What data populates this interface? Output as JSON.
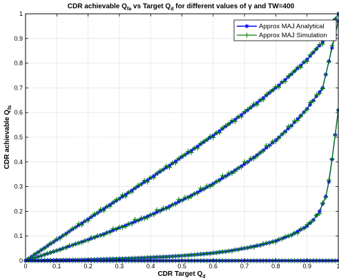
{
  "chart_data": {
    "type": "line",
    "title": {
      "main": "CDR achievable Q",
      "main_sub": "fa",
      "mid": " vs Target Q",
      "mid_sub": "d",
      "tail": " for different values of γ and TW=400"
    },
    "xlabel": {
      "main": "CDR Target Q",
      "sub": "d"
    },
    "ylabel": {
      "main": "CDR achievable Q",
      "sub": "fa"
    },
    "xlim": [
      0,
      1
    ],
    "ylim": [
      0,
      1
    ],
    "xticks": [
      "0",
      "0.1",
      "0.2",
      "0.3",
      "0.4",
      "0.5",
      "0.6",
      "0.7",
      "0.8",
      "0.9",
      "1"
    ],
    "yticks": [
      "0",
      "0.1",
      "0.2",
      "0.3",
      "0.4",
      "0.5",
      "0.6",
      "0.7",
      "0.8",
      "0.9",
      "1"
    ],
    "grid": true,
    "legend_position": "top-right",
    "colors": {
      "analytical": "#0000ff",
      "simulation": "#008000"
    },
    "series": [
      {
        "name": "Approx MAJ Analytical",
        "marker": "asterisk",
        "color": "#0000ff"
      },
      {
        "name": "Approx MAJ Simulation",
        "marker": "plus",
        "color": "#008000"
      }
    ],
    "curves": [
      {
        "x": [
          0,
          0.05,
          0.1,
          0.15,
          0.2,
          0.25,
          0.3,
          0.35,
          0.4,
          0.45,
          0.5,
          0.55,
          0.6,
          0.65,
          0.7,
          0.75,
          0.8,
          0.85,
          0.9,
          0.95,
          1
        ],
        "y": [
          0,
          0.043,
          0.085,
          0.127,
          0.168,
          0.21,
          0.251,
          0.293,
          0.335,
          0.377,
          0.42,
          0.463,
          0.507,
          0.553,
          0.6,
          0.649,
          0.7,
          0.755,
          0.815,
          0.885,
          1
        ]
      },
      {
        "x": [
          0,
          0.05,
          0.1,
          0.15,
          0.2,
          0.25,
          0.3,
          0.35,
          0.4,
          0.45,
          0.5,
          0.55,
          0.6,
          0.65,
          0.7,
          0.75,
          0.8,
          0.85,
          0.9,
          0.95,
          1
        ],
        "y": [
          0,
          0.02,
          0.041,
          0.063,
          0.085,
          0.108,
          0.133,
          0.158,
          0.185,
          0.214,
          0.245,
          0.277,
          0.312,
          0.35,
          0.391,
          0.437,
          0.488,
          0.547,
          0.615,
          0.7,
          0.97
        ]
      },
      {
        "x": [
          0,
          0.05,
          0.1,
          0.15,
          0.2,
          0.25,
          0.3,
          0.35,
          0.4,
          0.45,
          0.5,
          0.55,
          0.6,
          0.65,
          0.7,
          0.75,
          0.8,
          0.85,
          0.9,
          0.92,
          0.94,
          0.96,
          0.97,
          0.98,
          0.99,
          1
        ],
        "y": [
          0,
          0.001,
          0.002,
          0.003,
          0.004,
          0.006,
          0.008,
          0.01,
          0.013,
          0.016,
          0.02,
          0.025,
          0.031,
          0.039,
          0.05,
          0.063,
          0.08,
          0.104,
          0.14,
          0.165,
          0.2,
          0.26,
          0.32,
          0.41,
          0.51,
          0.61
        ]
      },
      {
        "x": [
          0,
          0.1,
          0.2,
          0.3,
          0.4,
          0.5,
          0.6,
          0.7,
          0.8,
          0.9,
          1
        ],
        "y": [
          0,
          0,
          0,
          0,
          0,
          0,
          0,
          0,
          0,
          0,
          0
        ]
      }
    ]
  }
}
